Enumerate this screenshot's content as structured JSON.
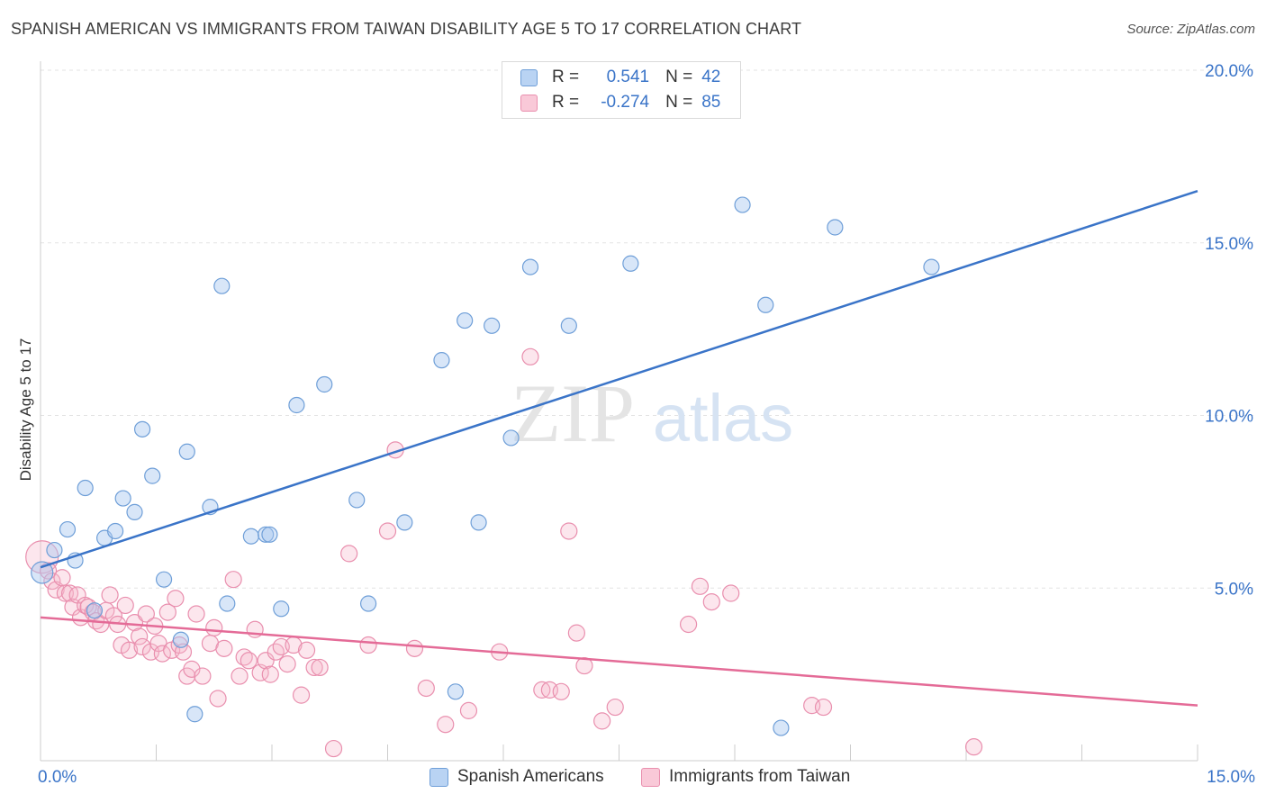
{
  "title": "SPANISH AMERICAN VS IMMIGRANTS FROM TAIWAN DISABILITY AGE 5 TO 17 CORRELATION CHART",
  "source": "Source: ZipAtlas.com",
  "watermark": {
    "zip": "ZIP",
    "atlas": "atlas"
  },
  "legend_top": {
    "rows": [
      {
        "r_label": "R =",
        "r_value": "0.541",
        "n_label": "N =",
        "n_value": "42"
      },
      {
        "r_label": "R =",
        "r_value": "-0.274",
        "n_label": "N =",
        "n_value": "85"
      }
    ]
  },
  "colors": {
    "blue_fill": "#a9c8f0",
    "blue_stroke": "#6f9fd8",
    "blue_line": "#3a74c8",
    "pink_fill": "#f6b8cb",
    "pink_stroke": "#e98fae",
    "pink_line": "#e46b97",
    "tick_blue": "#3a74c8",
    "grid": "#e3e3e3"
  },
  "chart_data": {
    "type": "scatter",
    "title": "SPANISH AMERICAN VS IMMIGRANTS FROM TAIWAN DISABILITY AGE 5 TO 17 CORRELATION CHART",
    "xlabel": "",
    "ylabel": "Disability Age 5 to 17",
    "xlim": [
      0,
      15
    ],
    "ylim": [
      0,
      20
    ],
    "x_tick_labels": [
      {
        "value": 0,
        "label": "0.0%"
      },
      {
        "value": 15,
        "label": "15.0%"
      }
    ],
    "y_tick_labels": [
      {
        "value": 5,
        "label": "5.0%"
      },
      {
        "value": 10,
        "label": "10.0%"
      },
      {
        "value": 15,
        "label": "15.0%"
      },
      {
        "value": 20,
        "label": "20.0%"
      }
    ],
    "grid": true,
    "legend_position": "bottom",
    "series": [
      {
        "name": "Spanish Americans",
        "color": "#a9c8f0",
        "trend": {
          "x": [
            0,
            15
          ],
          "y": [
            5.6,
            16.5
          ]
        },
        "points": [
          [
            0.02,
            5.45
          ],
          [
            0.18,
            6.1
          ],
          [
            0.35,
            6.7
          ],
          [
            0.45,
            5.8
          ],
          [
            0.58,
            7.9
          ],
          [
            0.7,
            4.35
          ],
          [
            0.83,
            6.45
          ],
          [
            0.97,
            6.65
          ],
          [
            1.07,
            7.6
          ],
          [
            1.22,
            7.2
          ],
          [
            1.32,
            9.6
          ],
          [
            1.45,
            8.25
          ],
          [
            1.6,
            5.25
          ],
          [
            1.82,
            3.5
          ],
          [
            1.9,
            8.95
          ],
          [
            2.0,
            1.35
          ],
          [
            2.2,
            7.35
          ],
          [
            2.35,
            13.75
          ],
          [
            2.42,
            4.55
          ],
          [
            2.73,
            6.5
          ],
          [
            2.92,
            6.55
          ],
          [
            2.97,
            6.55
          ],
          [
            3.12,
            4.4
          ],
          [
            3.32,
            10.3
          ],
          [
            3.68,
            10.9
          ],
          [
            4.1,
            7.55
          ],
          [
            4.25,
            4.55
          ],
          [
            4.72,
            6.9
          ],
          [
            5.2,
            11.6
          ],
          [
            5.38,
            2.0
          ],
          [
            5.5,
            12.75
          ],
          [
            5.68,
            6.9
          ],
          [
            5.85,
            12.6
          ],
          [
            6.1,
            9.35
          ],
          [
            6.35,
            14.3
          ],
          [
            6.85,
            12.6
          ],
          [
            7.65,
            14.4
          ],
          [
            9.1,
            16.1
          ],
          [
            9.4,
            13.2
          ],
          [
            9.6,
            0.95
          ],
          [
            10.3,
            15.45
          ],
          [
            11.55,
            14.3
          ]
        ]
      },
      {
        "name": "Immigrants from Taiwan",
        "color": "#f6b8cb",
        "trend": {
          "x": [
            0,
            15
          ],
          "y": [
            4.15,
            1.6
          ]
        },
        "points": [
          [
            0.02,
            5.9
          ],
          [
            0.1,
            5.5
          ],
          [
            0.15,
            5.2
          ],
          [
            0.2,
            4.95
          ],
          [
            0.28,
            5.3
          ],
          [
            0.32,
            4.85
          ],
          [
            0.38,
            4.85
          ],
          [
            0.42,
            4.45
          ],
          [
            0.48,
            4.8
          ],
          [
            0.52,
            4.15
          ],
          [
            0.58,
            4.5
          ],
          [
            0.62,
            4.45
          ],
          [
            0.68,
            4.3
          ],
          [
            0.72,
            4.05
          ],
          [
            0.78,
            3.95
          ],
          [
            0.85,
            4.35
          ],
          [
            0.9,
            4.8
          ],
          [
            0.95,
            4.2
          ],
          [
            1.0,
            3.95
          ],
          [
            1.05,
            3.35
          ],
          [
            1.1,
            4.5
          ],
          [
            1.15,
            3.2
          ],
          [
            1.22,
            4.0
          ],
          [
            1.28,
            3.6
          ],
          [
            1.32,
            3.3
          ],
          [
            1.37,
            4.25
          ],
          [
            1.43,
            3.15
          ],
          [
            1.48,
            3.9
          ],
          [
            1.53,
            3.4
          ],
          [
            1.58,
            3.1
          ],
          [
            1.65,
            4.3
          ],
          [
            1.7,
            3.2
          ],
          [
            1.75,
            4.7
          ],
          [
            1.8,
            3.35
          ],
          [
            1.85,
            3.15
          ],
          [
            1.9,
            2.45
          ],
          [
            1.96,
            2.65
          ],
          [
            2.02,
            4.25
          ],
          [
            2.1,
            2.45
          ],
          [
            2.2,
            3.4
          ],
          [
            2.25,
            3.85
          ],
          [
            2.3,
            1.8
          ],
          [
            2.38,
            3.25
          ],
          [
            2.5,
            5.25
          ],
          [
            2.58,
            2.45
          ],
          [
            2.64,
            3.0
          ],
          [
            2.7,
            2.9
          ],
          [
            2.78,
            3.8
          ],
          [
            2.85,
            2.55
          ],
          [
            2.92,
            2.9
          ],
          [
            2.98,
            2.5
          ],
          [
            3.05,
            3.15
          ],
          [
            3.12,
            3.3
          ],
          [
            3.2,
            2.8
          ],
          [
            3.28,
            3.35
          ],
          [
            3.38,
            1.9
          ],
          [
            3.45,
            3.2
          ],
          [
            3.55,
            2.7
          ],
          [
            3.62,
            2.7
          ],
          [
            3.8,
            0.35
          ],
          [
            4.0,
            6.0
          ],
          [
            4.25,
            3.35
          ],
          [
            4.5,
            6.65
          ],
          [
            4.6,
            9.0
          ],
          [
            4.85,
            3.25
          ],
          [
            5.0,
            2.1
          ],
          [
            5.25,
            1.05
          ],
          [
            5.55,
            1.45
          ],
          [
            5.95,
            3.15
          ],
          [
            6.35,
            11.7
          ],
          [
            6.5,
            2.05
          ],
          [
            6.6,
            2.05
          ],
          [
            6.75,
            2.0
          ],
          [
            6.85,
            6.65
          ],
          [
            6.95,
            3.7
          ],
          [
            7.05,
            2.75
          ],
          [
            7.28,
            1.15
          ],
          [
            7.45,
            1.55
          ],
          [
            8.4,
            3.95
          ],
          [
            8.55,
            5.05
          ],
          [
            8.7,
            4.6
          ],
          [
            8.95,
            4.85
          ],
          [
            10.0,
            1.6
          ],
          [
            10.15,
            1.55
          ],
          [
            12.1,
            0.4
          ]
        ]
      }
    ]
  }
}
